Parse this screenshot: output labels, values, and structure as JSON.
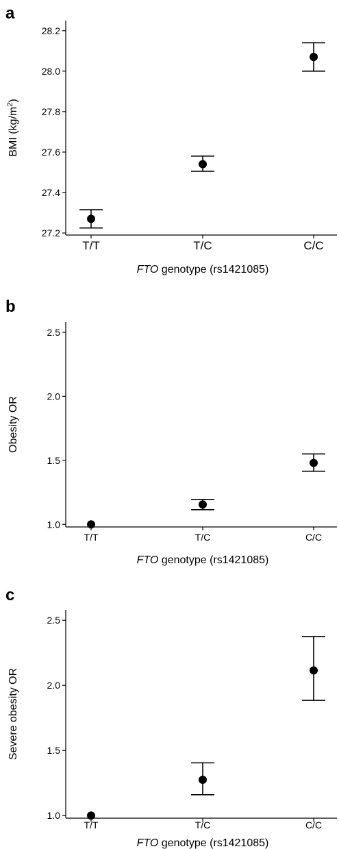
{
  "chart_data": [
    {
      "panel": "a",
      "type": "scatter",
      "categories": [
        "T/T",
        "T/C",
        "C/C"
      ],
      "values": [
        27.27,
        27.54,
        28.07
      ],
      "error_low": [
        27.225,
        27.505,
        28.0
      ],
      "error_high": [
        27.315,
        27.58,
        28.14
      ],
      "ylabel_main": "BMI (kg/m",
      "ylabel_sup": "2",
      "ylabel_end": ")",
      "xlabel_italic": "FTO",
      "xlabel_rest": " genotype (rs1421085)",
      "yticks": [
        27.2,
        27.4,
        27.6,
        27.8,
        28.0,
        28.2
      ],
      "ytick_labels": [
        "27.2",
        "27.4",
        "27.6",
        "27.8",
        "28.0",
        "28.2"
      ],
      "ylim": [
        27.19,
        28.25
      ],
      "grid": false
    },
    {
      "panel": "b",
      "type": "scatter",
      "categories": [
        "T/T",
        "T/C",
        "C/C"
      ],
      "values": [
        1.0,
        1.155,
        1.48
      ],
      "error_low": [
        null,
        1.115,
        1.415
      ],
      "error_high": [
        null,
        1.195,
        1.55
      ],
      "ylabel_main": "Obesity OR",
      "xlabel_italic": "FTO",
      "xlabel_rest": " genotype (rs1421085)",
      "yticks": [
        1.0,
        1.5,
        2.0,
        2.5
      ],
      "ytick_labels": [
        "1.0",
        "1.5",
        "2.0",
        "2.5"
      ],
      "ylim": [
        0.98,
        2.58
      ],
      "grid": false
    },
    {
      "panel": "c",
      "type": "scatter",
      "categories": [
        "T/T",
        "T/C",
        "C/C"
      ],
      "values": [
        1.0,
        1.275,
        2.115
      ],
      "error_low": [
        null,
        1.16,
        1.885
      ],
      "error_high": [
        null,
        1.405,
        2.375
      ],
      "ylabel_main": "Severe obesity OR",
      "xlabel_italic": "FTO",
      "xlabel_rest": " genotype (rs1421085)",
      "yticks": [
        1.0,
        1.5,
        2.0,
        2.5
      ],
      "ytick_labels": [
        "1.0",
        "1.5",
        "2.0",
        "2.5"
      ],
      "ylim": [
        0.98,
        2.58
      ],
      "grid": false
    }
  ]
}
